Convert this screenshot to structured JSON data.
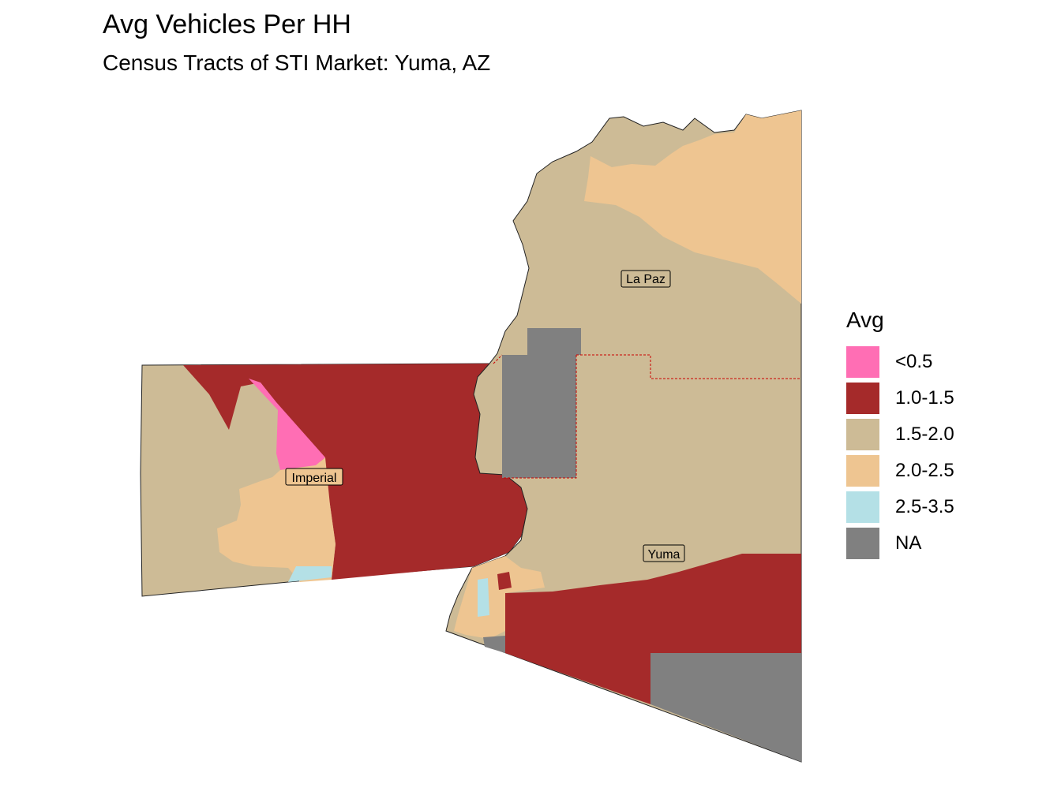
{
  "title": "Avg Vehicles Per HH",
  "subtitle": "Census Tracts of STI Market: Yuma, AZ",
  "legend": {
    "title": "Avg",
    "items": [
      {
        "label": "<0.5",
        "color": "#FF6EB4"
      },
      {
        "label": "1.0-1.5",
        "color": "#A52A2A"
      },
      {
        "label": "1.5-2.0",
        "color": "#CDBB96"
      },
      {
        "label": "2.0-2.5",
        "color": "#EEC591"
      },
      {
        "label": "2.5-3.5",
        "color": "#B4E0E6"
      },
      {
        "label": "NA",
        "color": "#808080"
      }
    ]
  },
  "counties": [
    {
      "name": "La Paz"
    },
    {
      "name": "Imperial"
    },
    {
      "name": "Yuma"
    }
  ]
}
